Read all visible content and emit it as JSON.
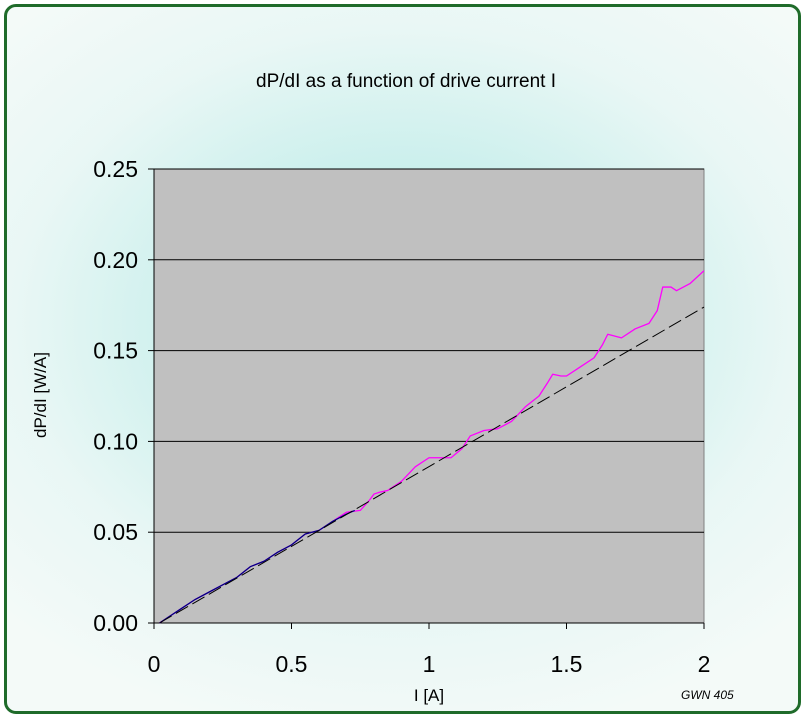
{
  "chart_data": {
    "type": "line",
    "title": "dP/dI as a function of drive current I",
    "xlabel": "I [A]",
    "ylabel": "dP/dI [W/A]",
    "xlim": [
      0,
      2
    ],
    "ylim": [
      0,
      0.25
    ],
    "x_ticks": [
      0,
      0.5,
      1,
      1.5,
      2
    ],
    "x_tick_labels": [
      "0",
      "0.5",
      "1",
      "1.5",
      "2"
    ],
    "y_ticks": [
      0,
      0.05,
      0.1,
      0.15,
      0.2,
      0.25
    ],
    "y_tick_labels": [
      "0.00",
      "0.05",
      "0.10",
      "0.15",
      "0.20",
      "0.25"
    ],
    "grid": "horizontal",
    "legend": "none",
    "annotation": "GWN 405",
    "plot_background": "#c0c0c0",
    "series": [
      {
        "style": "solid",
        "color": "#ff00ff",
        "x": [
          0.02,
          0.1,
          0.15,
          0.2,
          0.25,
          0.3,
          0.35,
          0.4,
          0.45,
          0.5,
          0.55,
          0.6,
          0.65,
          0.7,
          0.75,
          0.78,
          0.8,
          0.82,
          0.85,
          0.9,
          0.95,
          1.0,
          1.05,
          1.08,
          1.12,
          1.15,
          1.2,
          1.25,
          1.3,
          1.35,
          1.4,
          1.43,
          1.45,
          1.48,
          1.5,
          1.55,
          1.6,
          1.63,
          1.65,
          1.7,
          1.75,
          1.8,
          1.83,
          1.85,
          1.88,
          1.9,
          1.95,
          2.0
        ],
        "y": [
          0.0,
          0.008,
          0.013,
          0.017,
          0.021,
          0.025,
          0.031,
          0.034,
          0.039,
          0.043,
          0.049,
          0.051,
          0.056,
          0.061,
          0.062,
          0.067,
          0.071,
          0.072,
          0.073,
          0.078,
          0.086,
          0.091,
          0.091,
          0.091,
          0.096,
          0.103,
          0.106,
          0.107,
          0.111,
          0.119,
          0.125,
          0.132,
          0.137,
          0.136,
          0.136,
          0.141,
          0.146,
          0.153,
          0.159,
          0.157,
          0.162,
          0.165,
          0.172,
          0.185,
          0.185,
          0.183,
          0.187,
          0.194
        ]
      },
      {
        "style": "solid",
        "color": "#000080",
        "x": [
          0.02,
          0.1,
          0.15,
          0.2,
          0.25,
          0.3,
          0.35,
          0.4,
          0.45,
          0.5,
          0.55,
          0.6,
          0.65,
          0.7,
          0.73
        ],
        "y": [
          0.0,
          0.008,
          0.013,
          0.017,
          0.021,
          0.025,
          0.031,
          0.034,
          0.039,
          0.043,
          0.049,
          0.051,
          0.056,
          0.06,
          0.062
        ]
      },
      {
        "style": "dashed",
        "color": "#000000",
        "x": [
          0.02,
          2.0
        ],
        "y": [
          0.0,
          0.174
        ]
      }
    ]
  }
}
